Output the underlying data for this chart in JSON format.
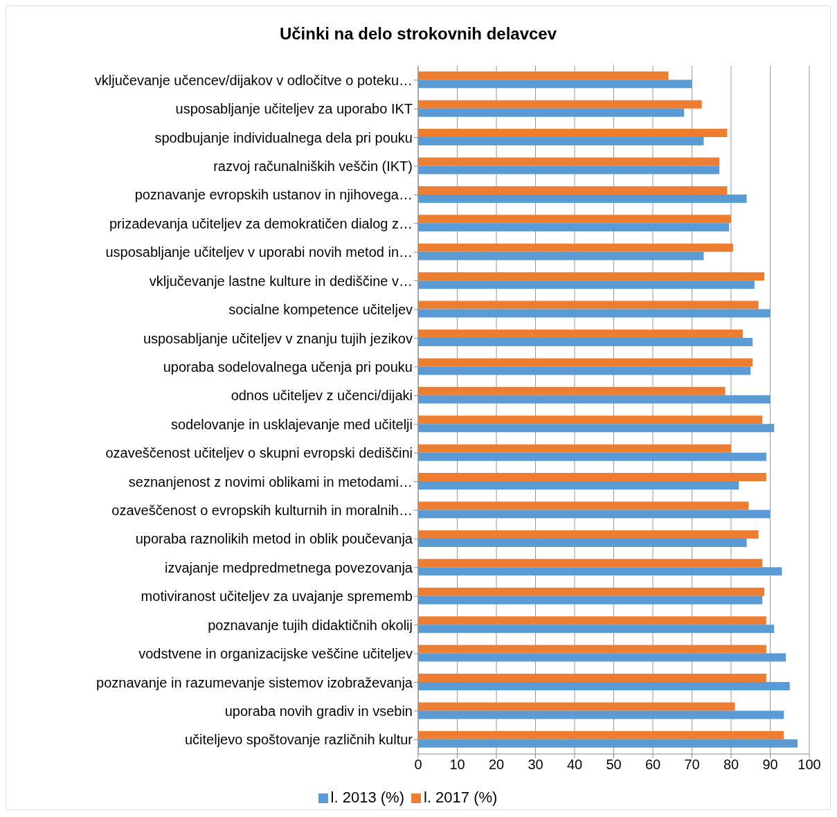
{
  "chart_data": {
    "type": "bar",
    "orientation": "horizontal",
    "title": "Učinki na delo strokovnih delavcev",
    "categories": [
      "vključevanje učencev/dijakov v odločitve o poteku…",
      "usposabljanje učiteljev za uporabo IKT",
      "spodbujanje individualnega dela pri pouku",
      "razvoj računalniških veščin (IKT)",
      "poznavanje evropskih ustanov in njihovega…",
      "prizadevanja učiteljev za demokratičen dialog z…",
      "usposabljanje učiteljev v uporabi novih metod in…",
      "vključevanje lastne kulture in dediščine v…",
      "socialne kompetence učiteljev",
      "usposabljanje učiteljev v znanju tujih jezikov",
      "uporaba sodelovalnega učenja pri pouku",
      "odnos učiteljev z učenci/dijaki",
      "sodelovanje in usklajevanje med učitelji",
      "ozaveščenost učiteljev o skupni evropski dediščini",
      "seznanjenost z novimi oblikami in metodami…",
      "ozaveščenost o evropskih kulturnih in moralnih…",
      "uporaba raznolikih metod in oblik poučevanja",
      "izvajanje medpredmetnega povezovanja",
      "motiviranost učiteljev za uvajanje sprememb",
      "poznavanje tujih didaktičnih okolij",
      "vodstvene in organizacijske veščine učiteljev",
      "poznavanje in razumevanje sistemov izobraževanja",
      "uporaba novih gradiv in vsebin",
      "učiteljevo spoštovanje različnih kultur"
    ],
    "series": [
      {
        "name": "l. 2017 (%)",
        "color": "#ed7d31",
        "values": [
          64,
          72.5,
          79,
          77,
          79,
          80,
          80.5,
          88.5,
          87,
          83,
          85.5,
          78.5,
          88,
          80,
          89,
          84.5,
          87,
          88,
          88.5,
          89,
          89,
          89,
          81,
          93.5
        ]
      },
      {
        "name": "l. 2013 (%)",
        "color": "#5b9bd5",
        "values": [
          70,
          68,
          73,
          77,
          84,
          79.5,
          73,
          86,
          90,
          85.5,
          85,
          90,
          91,
          89,
          82,
          90,
          84,
          93,
          88,
          91,
          94,
          95,
          93.5,
          97
        ]
      }
    ],
    "xlim": [
      0,
      100
    ],
    "xticks": [
      0,
      10,
      20,
      30,
      40,
      50,
      60,
      70,
      80,
      90,
      100
    ],
    "grid": "x",
    "legend": "bottom"
  }
}
